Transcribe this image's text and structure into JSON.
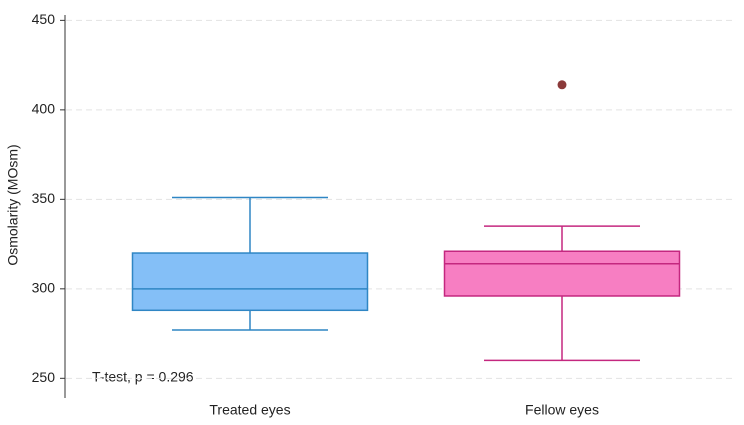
{
  "chart_data": {
    "type": "box",
    "y_label": "Osmolarity (MOsm)",
    "annotation": "T-test, p = 0.296",
    "categories": [
      "Treated eyes",
      "Fellow eyes"
    ],
    "boxes": [
      {
        "whisker_low": 277,
        "q1": 288,
        "median": 300,
        "q3": 320,
        "whisker_high": 351,
        "outliers": [],
        "color": "#84bff7",
        "stroke": "#2f86c4"
      },
      {
        "whisker_low": 260,
        "q1": 296,
        "median": 314,
        "q3": 321,
        "whisker_high": 335,
        "outliers": [
          414
        ],
        "color": "#f77ec2",
        "stroke": "#c4277f"
      }
    ],
    "outlier_color": "#8b3a3a",
    "ylim": [
      239,
      453
    ],
    "yticks": [
      250,
      300,
      350,
      400,
      450
    ],
    "grid": true
  }
}
